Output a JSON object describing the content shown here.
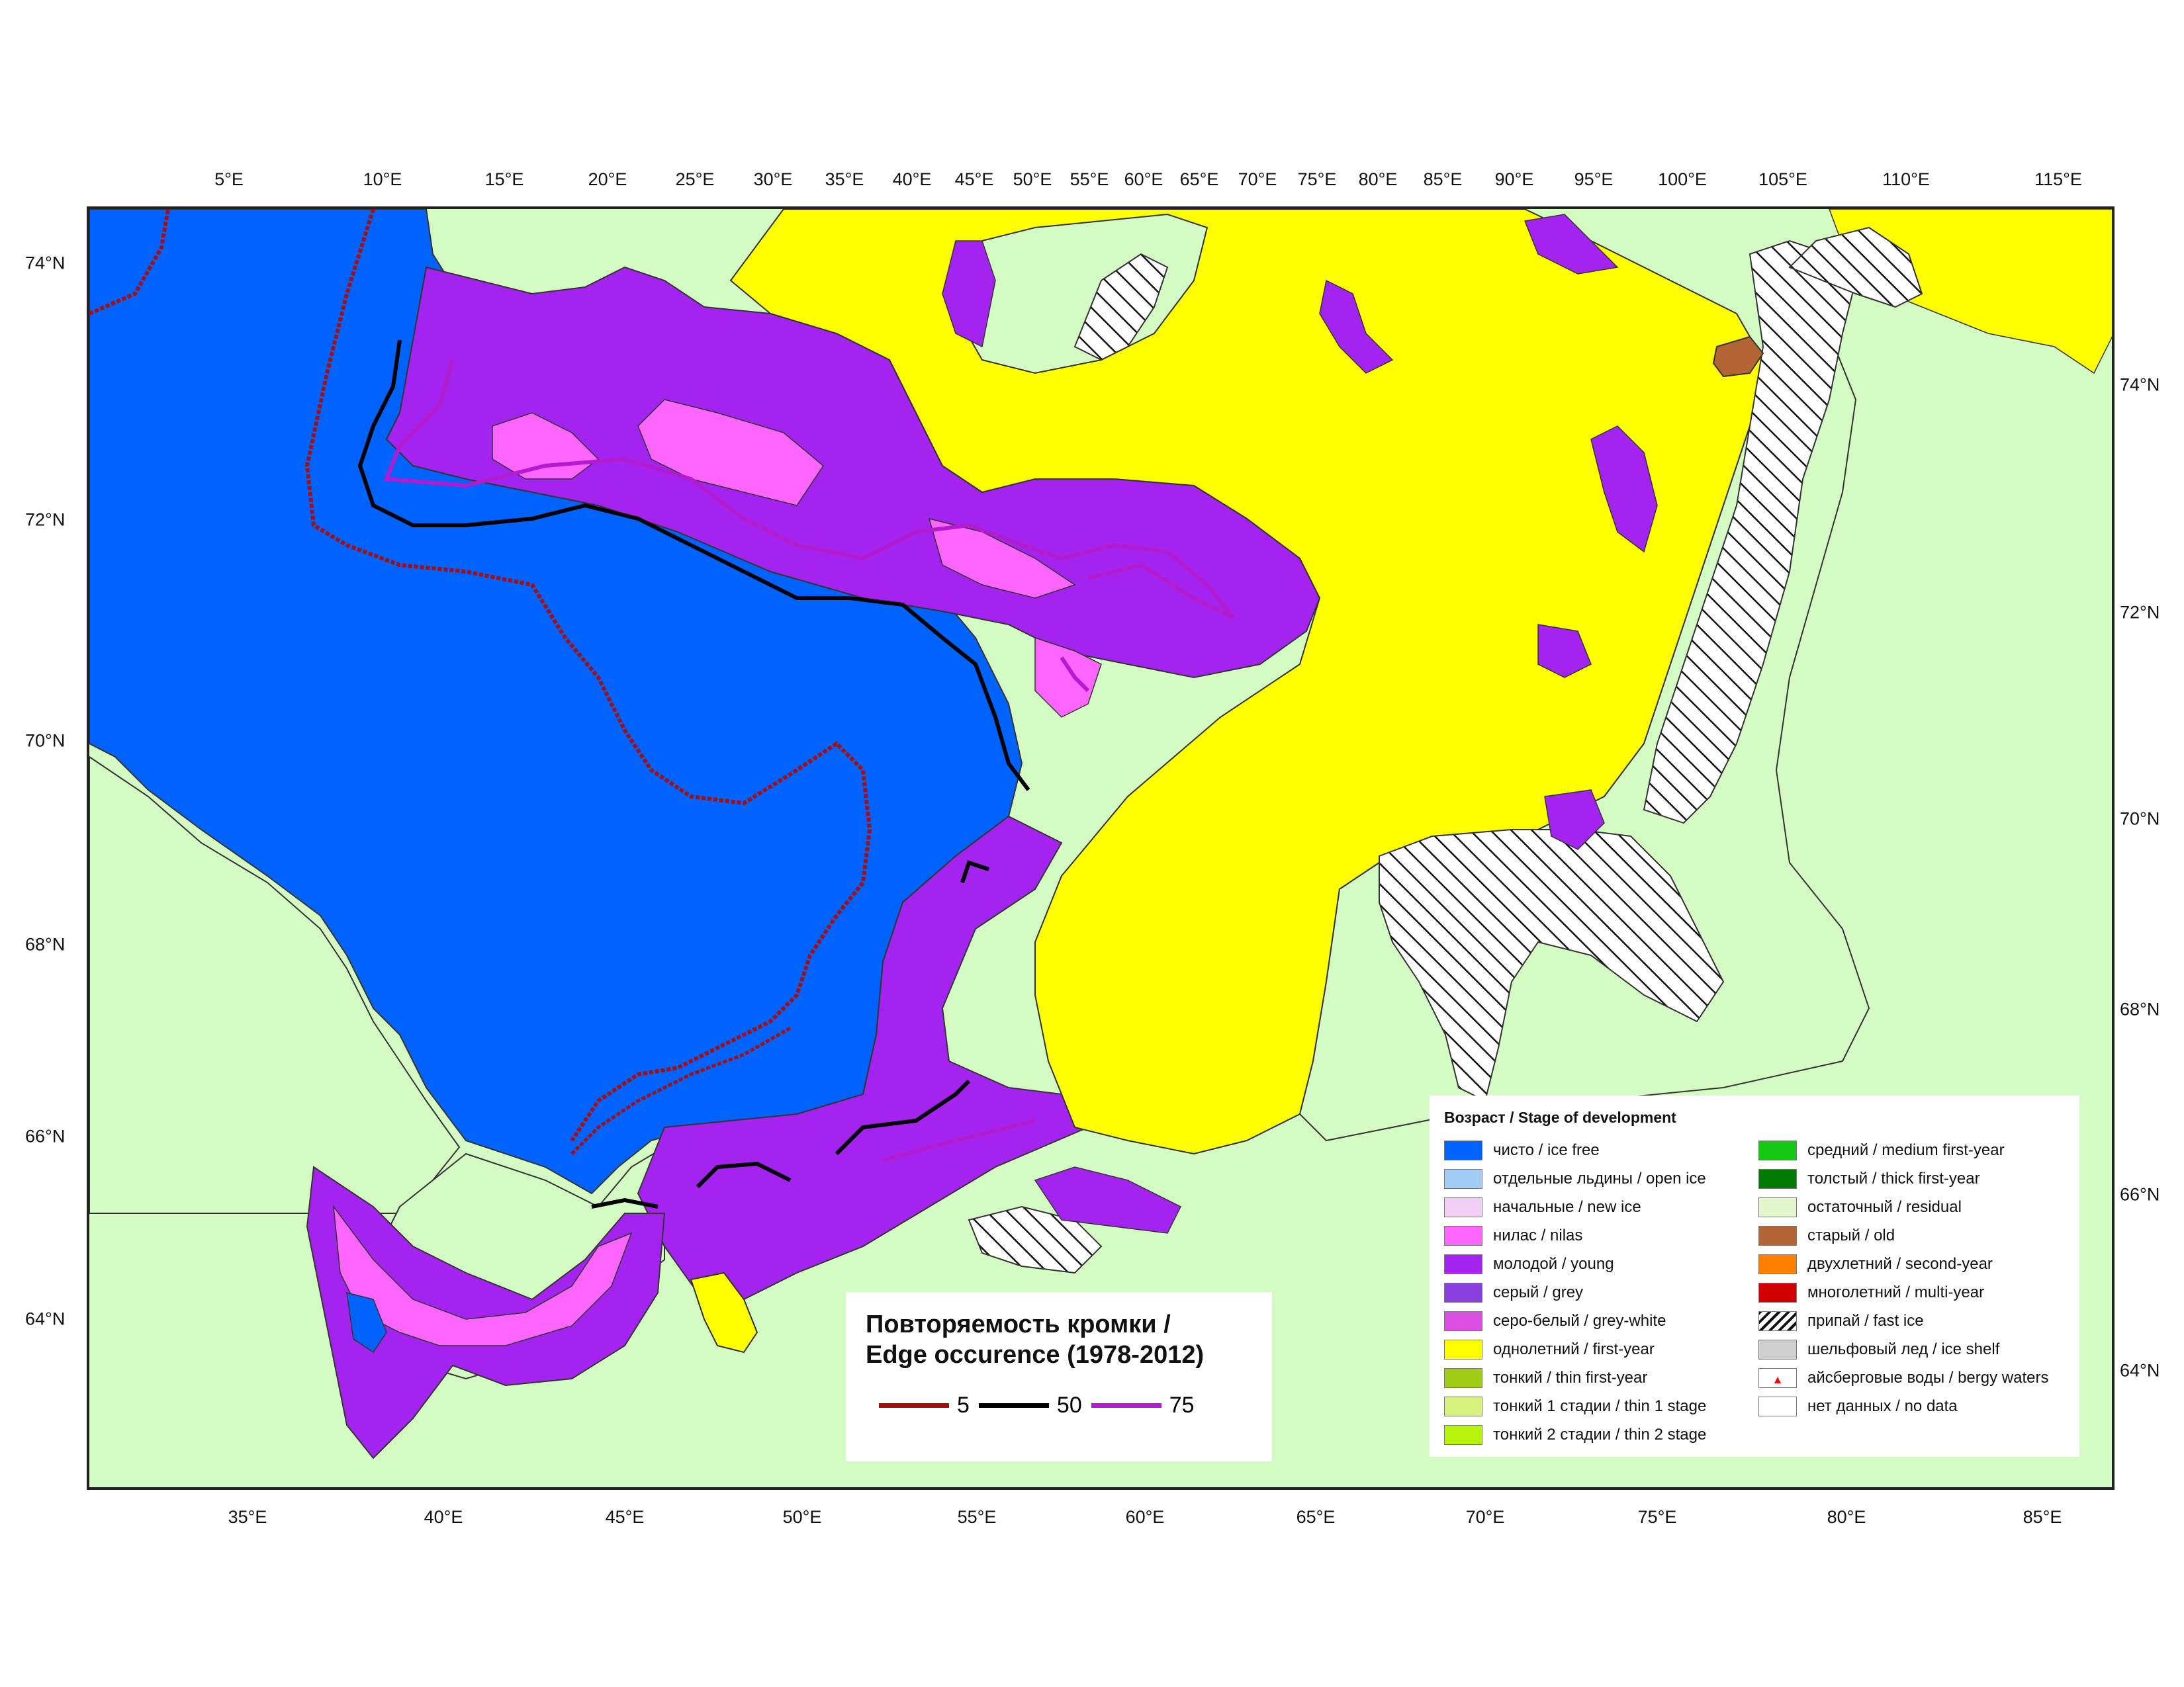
{
  "top_lon_labels": [
    "5°E",
    "10°E",
    "15°E",
    "20°E",
    "25°E",
    "30°E",
    "35°E",
    "40°E",
    "45°E",
    "50°E",
    "55°E",
    "60°E",
    "65°E",
    "70°E",
    "75°E",
    "80°E",
    "85°E",
    "90°E",
    "95°E",
    "100°E",
    "105°E",
    "110°E",
    "115°E"
  ],
  "bottom_lon_labels": [
    "35°E",
    "40°E",
    "45°E",
    "50°E",
    "55°E",
    "60°E",
    "65°E",
    "70°E",
    "75°E",
    "80°E",
    "85°E"
  ],
  "left_lat_labels": [
    "74°N",
    "72°N",
    "70°N",
    "68°N",
    "66°N",
    "64°N"
  ],
  "right_lat_labels": [
    "74°N",
    "72°N",
    "70°N",
    "68°N",
    "66°N",
    "64°N"
  ],
  "edge_occurrence": {
    "title_line1": "Повторяемость кромки /",
    "title_line2": "Edge occurence (1978-2012)",
    "lines": [
      {
        "label": "5",
        "color": "#a30f0f"
      },
      {
        "label": "50",
        "color": "#000000"
      },
      {
        "label": "75",
        "color": "#b21ccf"
      }
    ]
  },
  "legend": {
    "title": "Возраст / Stage of development",
    "left_items": [
      {
        "label": "чисто / ice free",
        "color": "#0062ff"
      },
      {
        "label": "отдельные льдины / open ice",
        "color": "#a3cdf7"
      },
      {
        "label": "начальные / new ice",
        "color": "#f2cff4"
      },
      {
        "label": "нилас / nilas",
        "color": "#ff66ff"
      },
      {
        "label": "молодой / young",
        "color": "#a424ef"
      },
      {
        "label": "серый / grey",
        "color": "#8a3fe0"
      },
      {
        "label": "серо-белый / grey-white",
        "color": "#d94fe0"
      },
      {
        "label": "однолетний / first-year",
        "color": "#ffff00"
      },
      {
        "label": "тонкий / thin first-year",
        "color": "#9fcc14"
      },
      {
        "label": "тонкий 1 стадии / thin 1 stage",
        "color": "#d6f27c"
      },
      {
        "label": "тонкий 2 стадии / thin 2 stage",
        "color": "#b8f20f"
      }
    ],
    "right_items": [
      {
        "label": "средний / medium first-year",
        "color": "#14c814"
      },
      {
        "label": "толстый / thick first-year",
        "color": "#007a00"
      },
      {
        "label": "остаточный / residual",
        "color": "#e3f7cc"
      },
      {
        "label": "старый / old",
        "color": "#b36633"
      },
      {
        "label": "двухлетний / second-year",
        "color": "#ff7f00"
      },
      {
        "label": "многолетний / multi-year",
        "color": "#d10000"
      },
      {
        "label": "припай / fast ice",
        "color": "hatch"
      },
      {
        "label": "шельфовый лед / ice shelf",
        "color": "#cfcfcf"
      },
      {
        "label": "айсберговые воды / bergy waters",
        "color": "berg"
      },
      {
        "label": "нет данных / no data",
        "color": "#ffffff"
      }
    ]
  },
  "colors": {
    "land": "#d5fbc5",
    "ice_free": "#0062ff",
    "first_year": "#ffff00",
    "young": "#a424ef",
    "nilas": "#ff66ff",
    "old": "#b36633",
    "edge_5": "#a30f0f",
    "edge_50": "#000000",
    "edge_75": "#b21ccf"
  }
}
